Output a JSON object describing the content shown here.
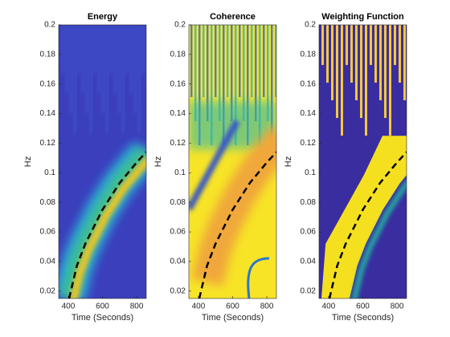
{
  "chart_data": [
    {
      "type": "line",
      "title": "Energy",
      "xlabel": "Time (Seconds)",
      "ylabel": "Hz",
      "xlim": [
        344,
        856
      ],
      "ylim": [
        0.015,
        0.2
      ],
      "xticks": [
        400,
        600,
        800
      ],
      "yticks": [
        0.02,
        0.04,
        0.06,
        0.08,
        0.1,
        0.12,
        0.14,
        0.16,
        0.18,
        0.2
      ],
      "x": [
        405,
        450,
        500,
        600,
        700,
        800,
        856
      ],
      "series": [
        {
          "color": "#000000",
          "line_style": "dashed",
          "values": [
            0.015,
            0.037,
            0.052,
            0.075,
            0.093,
            0.107,
            0.114
          ]
        }
      ]
    },
    {
      "type": "line",
      "title": "Coherence",
      "xlabel": "Time (Seconds)",
      "ylabel": "Hz",
      "xlim": [
        344,
        856
      ],
      "ylim": [
        0.015,
        0.2
      ],
      "xticks": [
        400,
        600,
        800
      ],
      "yticks": [
        0.02,
        0.04,
        0.06,
        0.08,
        0.1,
        0.12,
        0.14,
        0.16,
        0.18,
        0.2
      ],
      "x": [
        405,
        450,
        500,
        600,
        700,
        800,
        856
      ],
      "series": [
        {
          "color": "#000000",
          "line_style": "dashed",
          "values": [
            0.015,
            0.037,
            0.052,
            0.075,
            0.093,
            0.107,
            0.114
          ]
        }
      ]
    },
    {
      "type": "line",
      "title": "Weighting Function",
      "xlabel": "Time (Seconds)",
      "ylabel": "Hz",
      "xlim": [
        344,
        856
      ],
      "ylim": [
        0.015,
        0.2
      ],
      "xticks": [
        400,
        600,
        800
      ],
      "yticks": [
        0.02,
        0.04,
        0.06,
        0.08,
        0.1,
        0.12,
        0.14,
        0.16,
        0.18,
        0.2
      ],
      "x": [
        405,
        450,
        500,
        600,
        700,
        800,
        856
      ],
      "series": [
        {
          "color": "#000000",
          "line_style": "dashed",
          "values": [
            0.015,
            0.037,
            0.052,
            0.075,
            0.093,
            0.107,
            0.114
          ]
        }
      ]
    }
  ]
}
